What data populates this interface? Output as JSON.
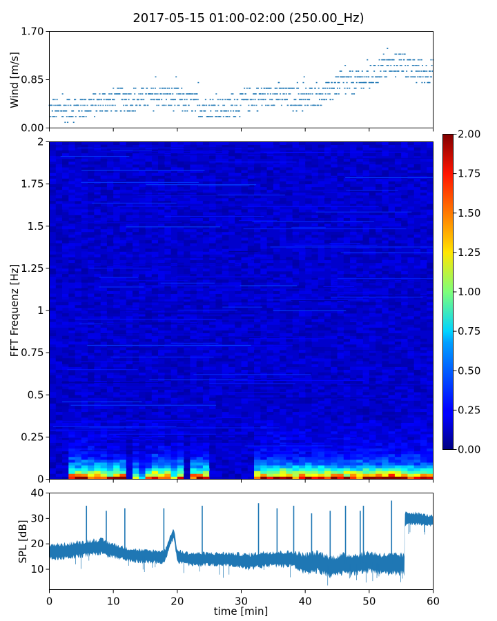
{
  "title": "2017-05-15 01:00-02:00 (250.00_Hz)",
  "chart_data": [
    {
      "type": "scatter",
      "ylabel": "Wind [m/s]",
      "xlabel": "",
      "xlim": [
        0,
        60
      ],
      "ylim": [
        0,
        1.7
      ],
      "yticks": [
        "0.00",
        "0.85",
        "1.70"
      ],
      "xticks": [
        0,
        10,
        20,
        30,
        40,
        50,
        60
      ],
      "color": "#1f77b4",
      "wind_levels": [
        0.1,
        0.2,
        0.3,
        0.4,
        0.5,
        0.6,
        0.7,
        0.8,
        0.9,
        1.0,
        1.1,
        1.2,
        1.3,
        1.4,
        1.5,
        1.6,
        1.7
      ],
      "mean_profile": {
        "x": [
          0,
          5,
          8,
          12,
          15,
          18,
          20,
          22,
          25,
          28,
          31,
          35,
          40,
          43,
          45,
          47,
          50,
          52,
          55,
          57,
          60
        ],
        "y": [
          0.3,
          0.35,
          0.45,
          0.5,
          0.5,
          0.55,
          0.5,
          0.45,
          0.35,
          0.35,
          0.5,
          0.6,
          0.5,
          0.6,
          0.75,
          0.8,
          0.85,
          1.05,
          1.15,
          1.0,
          1.0
        ]
      },
      "spread": 0.2
    },
    {
      "type": "heatmap",
      "ylabel": "FFT Frequenz [Hz]",
      "xlabel": "",
      "xlim": [
        0,
        60
      ],
      "ylim": [
        0,
        2
      ],
      "yticks": [
        "0",
        "0.25",
        "0.5",
        "0.75",
        "1",
        "1.25",
        "1.5",
        "1.75",
        "2"
      ],
      "xticks": [
        0,
        10,
        20,
        30,
        40,
        50,
        60
      ],
      "colormap": "jet",
      "colorbar_range": [
        0,
        2
      ],
      "colorbar_ticks": [
        "0.00",
        "0.25",
        "0.50",
        "0.75",
        "1.00",
        "1.25",
        "1.50",
        "1.75",
        "2.00"
      ],
      "low_frequency_energy_by_minute": [
        0.3,
        0.3,
        0.3,
        2.0,
        2.0,
        2.0,
        2.0,
        2.0,
        2.0,
        1.6,
        2.0,
        2.0,
        0.3,
        1.4,
        0.6,
        1.4,
        2.0,
        2.0,
        2.0,
        1.2,
        2.0,
        0.2,
        2.0,
        2.0,
        2.0,
        0.3,
        0.3,
        0.3,
        0.3,
        0.3,
        0.3,
        0.3,
        2.0,
        2.0,
        2.0,
        2.0,
        2.0,
        2.0,
        2.0,
        2.0,
        2.0,
        2.0,
        2.0,
        2.0,
        2.0,
        2.0,
        2.0,
        2.0,
        2.0,
        2.0,
        2.0,
        2.0,
        2.0,
        2.0,
        2.0,
        2.0,
        2.0,
        2.0,
        2.0,
        2.0
      ],
      "background_level": 0.15
    },
    {
      "type": "area",
      "ylabel": "SPL [dB]",
      "xlabel": "time [min]",
      "xlim": [
        0,
        60
      ],
      "ylim": [
        2,
        40
      ],
      "yticks": [
        10,
        20,
        30,
        40
      ],
      "xticks": [
        0,
        10,
        20,
        30,
        40,
        50,
        60
      ],
      "color": "#1f77b4",
      "center": {
        "x": [
          0,
          2,
          5,
          8,
          9,
          12,
          15,
          18,
          19,
          19.5,
          20,
          22,
          25,
          28,
          31,
          34,
          36,
          38,
          40,
          42,
          44,
          46,
          48,
          50,
          52,
          54,
          55.5,
          55.6,
          57,
          60
        ],
        "y": [
          17,
          17,
          18,
          19,
          18,
          16,
          15,
          15,
          22,
          24,
          15,
          14,
          14,
          14,
          13,
          14,
          14,
          14,
          12,
          13,
          11,
          12,
          12,
          13,
          12,
          12,
          12,
          30,
          30,
          29
        ]
      },
      "band_halfwidth": [
        3,
        3,
        3,
        3,
        3,
        2.5,
        2.5,
        2.5,
        2,
        2,
        2.5,
        2.5,
        2.5,
        2.5,
        3,
        3,
        3,
        3,
        4,
        4,
        4,
        4,
        4,
        4,
        4,
        4,
        4,
        2.5,
        2.5,
        2
      ],
      "spikes": [
        {
          "x": 5.8,
          "y": 35
        },
        {
          "x": 8.9,
          "y": 33
        },
        {
          "x": 11.8,
          "y": 34
        },
        {
          "x": 17.9,
          "y": 34
        },
        {
          "x": 23.9,
          "y": 35
        },
        {
          "x": 32.7,
          "y": 36
        },
        {
          "x": 35.6,
          "y": 34
        },
        {
          "x": 38.2,
          "y": 35
        },
        {
          "x": 41.0,
          "y": 32
        },
        {
          "x": 43.9,
          "y": 33
        },
        {
          "x": 46.3,
          "y": 35
        },
        {
          "x": 48.6,
          "y": 33
        },
        {
          "x": 49.1,
          "y": 35
        },
        {
          "x": 53.5,
          "y": 37
        }
      ]
    }
  ]
}
